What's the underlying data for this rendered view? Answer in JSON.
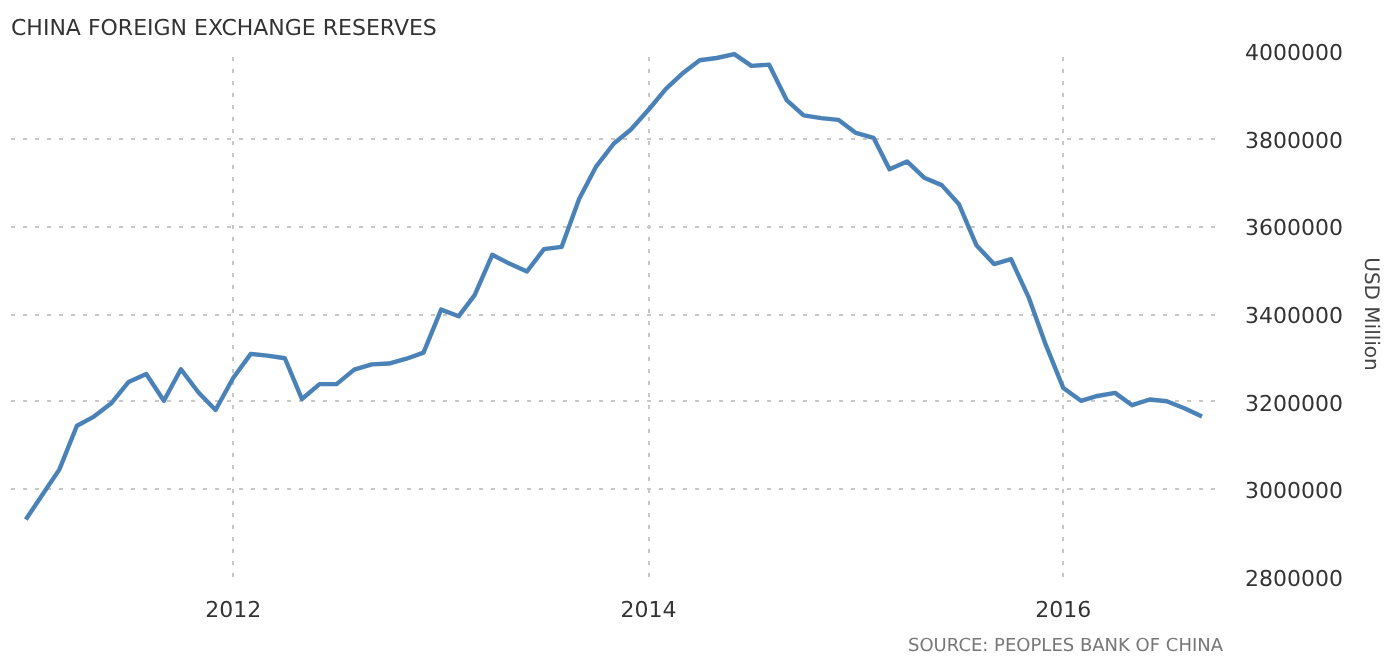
{
  "chart_data": {
    "type": "line",
    "title": "CHINA FOREIGN EXCHANGE RESERVES",
    "ylabel": "USD Million",
    "annotations": [
      "SOURCE: PEOPLES BANK OF CHINA"
    ],
    "x": [
      "2011-01",
      "2011-02",
      "2011-03",
      "2011-04",
      "2011-05",
      "2011-06",
      "2011-07",
      "2011-08",
      "2011-09",
      "2011-10",
      "2011-11",
      "2011-12",
      "2012-01",
      "2012-02",
      "2012-03",
      "2012-04",
      "2012-05",
      "2012-06",
      "2012-07",
      "2012-08",
      "2012-09",
      "2012-10",
      "2012-11",
      "2012-12",
      "2013-01",
      "2013-02",
      "2013-03",
      "2013-04",
      "2013-05",
      "2013-06",
      "2013-07",
      "2013-08",
      "2013-09",
      "2013-10",
      "2013-11",
      "2013-12",
      "2014-01",
      "2014-02",
      "2014-03",
      "2014-04",
      "2014-05",
      "2014-06",
      "2014-07",
      "2014-08",
      "2014-09",
      "2014-10",
      "2014-11",
      "2014-12",
      "2015-01",
      "2015-02",
      "2015-03",
      "2015-04",
      "2015-05",
      "2015-06",
      "2015-07",
      "2015-08",
      "2015-09",
      "2015-10",
      "2015-11",
      "2015-12",
      "2016-01",
      "2016-02",
      "2016-03",
      "2016-04",
      "2016-05",
      "2016-06",
      "2016-07",
      "2016-08",
      "2016-09"
    ],
    "series": [
      {
        "color": "#4a82b8",
        "values": [
          2931000,
          2991000,
          3045000,
          3145000,
          3166000,
          3197000,
          3245000,
          3263000,
          3202000,
          3274000,
          3221000,
          3181000,
          3254000,
          3309000,
          3305000,
          3299000,
          3206000,
          3240000,
          3240000,
          3273000,
          3285000,
          3287000,
          3298000,
          3312000,
          3410000,
          3395000,
          3443000,
          3535000,
          3515000,
          3497000,
          3548000,
          3553000,
          3663000,
          3737000,
          3789000,
          3821000,
          3866000,
          3914000,
          3948000,
          3979000,
          3984000,
          3993000,
          3966000,
          3969000,
          3888000,
          3853000,
          3847000,
          3843000,
          3813000,
          3802000,
          3730000,
          3748000,
          3711000,
          3694000,
          3651000,
          3557000,
          3514000,
          3525000,
          3438000,
          3330000,
          3231000,
          3202000,
          3213000,
          3220000,
          3192000,
          3205000,
          3201000,
          3185000,
          3166000
        ]
      }
    ],
    "xlim": [
      "2010-12-06",
      "2016-10-08"
    ],
    "xticks": [
      "2012",
      "2014",
      "2016"
    ],
    "ylim": [
      2800000,
      4000000
    ],
    "yticks": [
      2800000,
      3000000,
      3200000,
      3400000,
      3600000,
      3800000,
      4000000
    ],
    "grid": true,
    "line_style": "solid",
    "marker": "none"
  }
}
